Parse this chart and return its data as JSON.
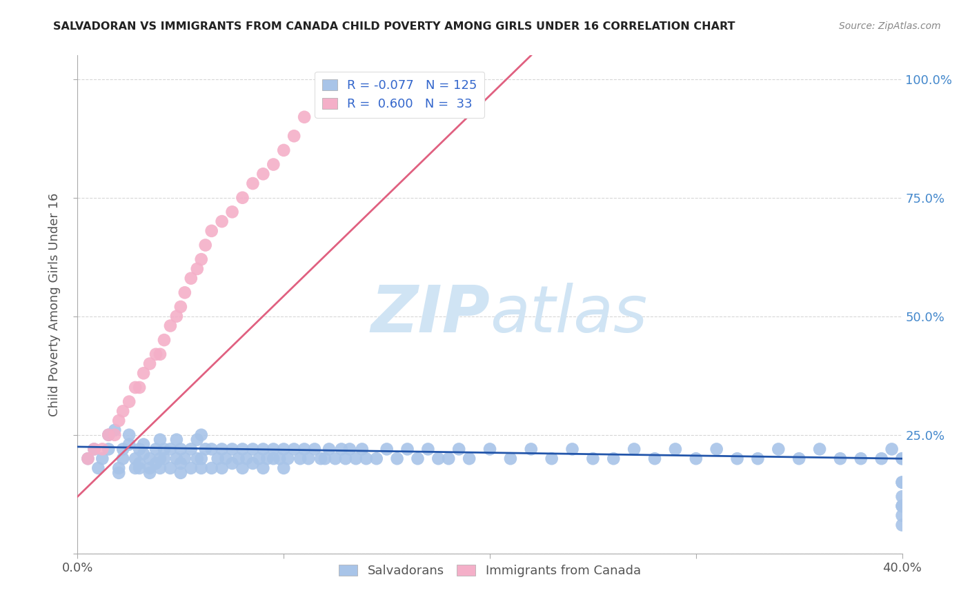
{
  "title": "SALVADORAN VS IMMIGRANTS FROM CANADA CHILD POVERTY AMONG GIRLS UNDER 16 CORRELATION CHART",
  "source": "Source: ZipAtlas.com",
  "ylabel": "Child Poverty Among Girls Under 16",
  "xlim": [
    0.0,
    0.4
  ],
  "ylim": [
    0.0,
    1.05
  ],
  "blue_color": "#a8c4e8",
  "pink_color": "#f4afc8",
  "trendline_blue": "#2255aa",
  "trendline_pink": "#e06080",
  "watermark_color": "#d0e4f4",
  "background_color": "#ffffff",
  "grid_color": "#cccccc",
  "salvadoran_x": [
    0.005,
    0.008,
    0.01,
    0.012,
    0.015,
    0.015,
    0.018,
    0.02,
    0.02,
    0.022,
    0.022,
    0.025,
    0.025,
    0.028,
    0.028,
    0.03,
    0.03,
    0.03,
    0.032,
    0.032,
    0.035,
    0.035,
    0.035,
    0.038,
    0.038,
    0.04,
    0.04,
    0.04,
    0.042,
    0.042,
    0.045,
    0.045,
    0.048,
    0.048,
    0.05,
    0.05,
    0.05,
    0.052,
    0.055,
    0.055,
    0.058,
    0.058,
    0.06,
    0.06,
    0.06,
    0.062,
    0.065,
    0.065,
    0.068,
    0.07,
    0.07,
    0.072,
    0.075,
    0.075,
    0.078,
    0.08,
    0.08,
    0.082,
    0.085,
    0.085,
    0.088,
    0.09,
    0.09,
    0.092,
    0.095,
    0.095,
    0.098,
    0.1,
    0.1,
    0.102,
    0.105,
    0.108,
    0.11,
    0.112,
    0.115,
    0.118,
    0.12,
    0.122,
    0.125,
    0.128,
    0.13,
    0.132,
    0.135,
    0.138,
    0.14,
    0.145,
    0.15,
    0.155,
    0.16,
    0.165,
    0.17,
    0.175,
    0.18,
    0.185,
    0.19,
    0.2,
    0.21,
    0.22,
    0.23,
    0.24,
    0.25,
    0.26,
    0.27,
    0.28,
    0.29,
    0.3,
    0.31,
    0.32,
    0.33,
    0.34,
    0.35,
    0.36,
    0.37,
    0.38,
    0.39,
    0.395,
    0.4,
    0.4,
    0.4,
    0.4,
    0.4,
    0.4,
    0.4,
    0.4,
    0.4
  ],
  "salvadoran_y": [
    0.2,
    0.22,
    0.18,
    0.2,
    0.22,
    0.25,
    0.26,
    0.17,
    0.18,
    0.2,
    0.22,
    0.23,
    0.25,
    0.18,
    0.2,
    0.18,
    0.19,
    0.22,
    0.21,
    0.23,
    0.17,
    0.18,
    0.2,
    0.19,
    0.22,
    0.18,
    0.2,
    0.24,
    0.2,
    0.22,
    0.18,
    0.22,
    0.2,
    0.24,
    0.17,
    0.19,
    0.22,
    0.2,
    0.18,
    0.22,
    0.2,
    0.24,
    0.18,
    0.2,
    0.25,
    0.22,
    0.18,
    0.22,
    0.2,
    0.18,
    0.22,
    0.2,
    0.19,
    0.22,
    0.2,
    0.18,
    0.22,
    0.2,
    0.19,
    0.22,
    0.2,
    0.18,
    0.22,
    0.2,
    0.2,
    0.22,
    0.2,
    0.18,
    0.22,
    0.2,
    0.22,
    0.2,
    0.22,
    0.2,
    0.22,
    0.2,
    0.2,
    0.22,
    0.2,
    0.22,
    0.2,
    0.22,
    0.2,
    0.22,
    0.2,
    0.2,
    0.22,
    0.2,
    0.22,
    0.2,
    0.22,
    0.2,
    0.2,
    0.22,
    0.2,
    0.22,
    0.2,
    0.22,
    0.2,
    0.22,
    0.2,
    0.2,
    0.22,
    0.2,
    0.22,
    0.2,
    0.22,
    0.2,
    0.2,
    0.22,
    0.2,
    0.22,
    0.2,
    0.2,
    0.2,
    0.22,
    0.15,
    0.15,
    0.12,
    0.1,
    0.08,
    0.06,
    0.1,
    0.2,
    0.2
  ],
  "canada_x": [
    0.005,
    0.008,
    0.012,
    0.015,
    0.018,
    0.02,
    0.022,
    0.025,
    0.028,
    0.03,
    0.032,
    0.035,
    0.038,
    0.04,
    0.042,
    0.045,
    0.048,
    0.05,
    0.052,
    0.055,
    0.058,
    0.06,
    0.062,
    0.065,
    0.07,
    0.075,
    0.08,
    0.085,
    0.09,
    0.095,
    0.1,
    0.105,
    0.11
  ],
  "canada_y": [
    0.2,
    0.22,
    0.22,
    0.25,
    0.25,
    0.28,
    0.3,
    0.32,
    0.35,
    0.35,
    0.38,
    0.4,
    0.42,
    0.42,
    0.45,
    0.48,
    0.5,
    0.52,
    0.55,
    0.58,
    0.6,
    0.62,
    0.65,
    0.68,
    0.7,
    0.72,
    0.75,
    0.78,
    0.8,
    0.82,
    0.85,
    0.88,
    0.92
  ],
  "blue_trendline_x": [
    0.0,
    0.4
  ],
  "blue_trendline_y": [
    0.225,
    0.2
  ],
  "pink_trendline_x": [
    0.0,
    0.22
  ],
  "pink_trendline_y": [
    0.12,
    1.05
  ]
}
